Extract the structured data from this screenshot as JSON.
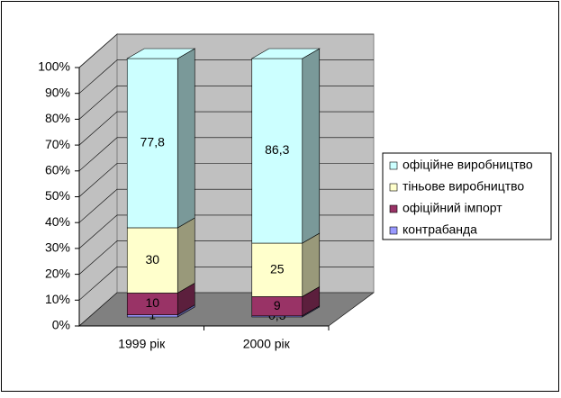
{
  "chart_data": {
    "type": "bar",
    "stacking": "percent",
    "categories": [
      "1999 рік",
      "2000 рік"
    ],
    "series": [
      {
        "name": "контрабанда",
        "color": "#9999ff",
        "values": [
          1,
          0.5
        ],
        "value_labels": [
          "1",
          "0,5"
        ]
      },
      {
        "name": "офіційний імпорт",
        "color": "#993366",
        "values": [
          10,
          9
        ]
      },
      {
        "name": "тіньове виробництво",
        "color": "#ffffcc",
        "values": [
          30,
          25
        ]
      },
      {
        "name": "офіційне виробництво",
        "color": "#ccffff",
        "values": [
          77.8,
          86.3
        ],
        "value_labels": [
          "77,8",
          "86,3"
        ]
      }
    ],
    "ylim": [
      0,
      100
    ],
    "yticks": [
      {
        "value": 0,
        "label": "0%"
      },
      {
        "value": 10,
        "label": "10%"
      },
      {
        "value": 20,
        "label": "20%"
      },
      {
        "value": 30,
        "label": "30%"
      },
      {
        "value": 40,
        "label": "40%"
      },
      {
        "value": 50,
        "label": "50%"
      },
      {
        "value": 60,
        "label": "60%"
      },
      {
        "value": 70,
        "label": "70%"
      },
      {
        "value": 80,
        "label": "80%"
      },
      {
        "value": 90,
        "label": "90%"
      },
      {
        "value": 100,
        "label": "100%"
      }
    ],
    "grid": true,
    "legend": "right"
  }
}
